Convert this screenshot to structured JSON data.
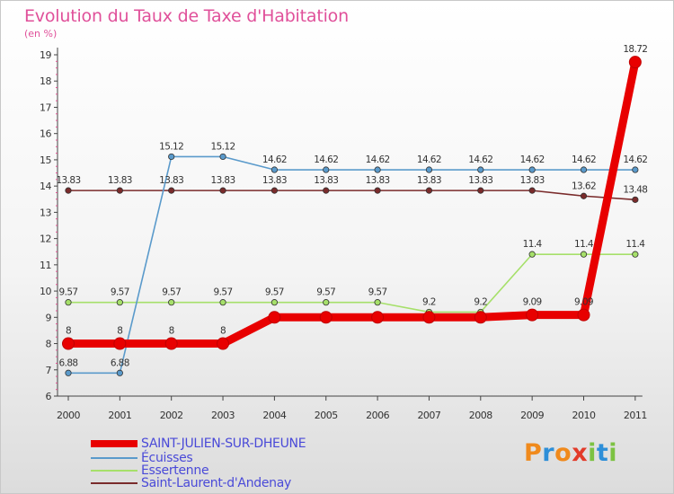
{
  "chart_data": {
    "type": "line",
    "title": "Evolution du Taux de Taxe d'Habitation",
    "unit_label": "(en %)",
    "xlabel": "",
    "ylabel": "",
    "ylim": [
      6,
      19
    ],
    "yticks": [
      6,
      7,
      8,
      9,
      10,
      11,
      12,
      13,
      14,
      15,
      16,
      17,
      18,
      19
    ],
    "categories": [
      "2000",
      "2001",
      "2002",
      "2003",
      "2004",
      "2005",
      "2006",
      "2007",
      "2008",
      "2009",
      "2010",
      "2011"
    ],
    "grid": false,
    "series": [
      {
        "name": "SAINT-JULIEN-SUR-DHEUNE",
        "color": "#e80000",
        "values": [
          8,
          8,
          8,
          8,
          9,
          9,
          9,
          9,
          9,
          9.09,
          9.09,
          18.72
        ],
        "labels": [
          "8",
          "8",
          "8",
          "8",
          "",
          "",
          "",
          "",
          "",
          "9.09",
          "9.09",
          "18.72"
        ]
      },
      {
        "name": "Écuisses",
        "color": "#5a9acb",
        "values": [
          6.88,
          6.88,
          15.12,
          15.12,
          14.62,
          14.62,
          14.62,
          14.62,
          14.62,
          14.62,
          14.62,
          14.62
        ],
        "labels": [
          "6.88",
          "6.88",
          "15.12",
          "15.12",
          "14.62",
          "14.62",
          "14.62",
          "14.62",
          "14.62",
          "14.62",
          "14.62",
          "14.62"
        ]
      },
      {
        "name": "Essertenne",
        "color": "#a6e06a",
        "values": [
          9.57,
          9.57,
          9.57,
          9.57,
          9.57,
          9.57,
          9.57,
          9.2,
          9.2,
          11.4,
          11.4,
          11.4
        ],
        "labels": [
          "9.57",
          "9.57",
          "9.57",
          "9.57",
          "9.57",
          "9.57",
          "9.57",
          "9.2",
          "9.2",
          "11.4",
          "11.4",
          "11.4"
        ]
      },
      {
        "name": "Saint-Laurent-d'Andenay",
        "color": "#7a2b2b",
        "values": [
          13.83,
          13.83,
          13.83,
          13.83,
          13.83,
          13.83,
          13.83,
          13.83,
          13.83,
          13.83,
          13.62,
          13.48
        ],
        "labels": [
          "13.83",
          "13.83",
          "13.83",
          "13.83",
          "13.83",
          "13.83",
          "13.83",
          "13.83",
          "13.83",
          "13.83",
          "13.62",
          "13.48"
        ]
      }
    ],
    "legend_position": "bottom-left"
  },
  "brand": {
    "letters": [
      "P",
      "r",
      "o",
      "x",
      "i",
      "t",
      "i"
    ],
    "colors": [
      "#f08a1c",
      "#2e8fd8",
      "#f08a1c",
      "#e23b2a",
      "#7cc242",
      "#2e8fd8",
      "#7cc242"
    ]
  }
}
